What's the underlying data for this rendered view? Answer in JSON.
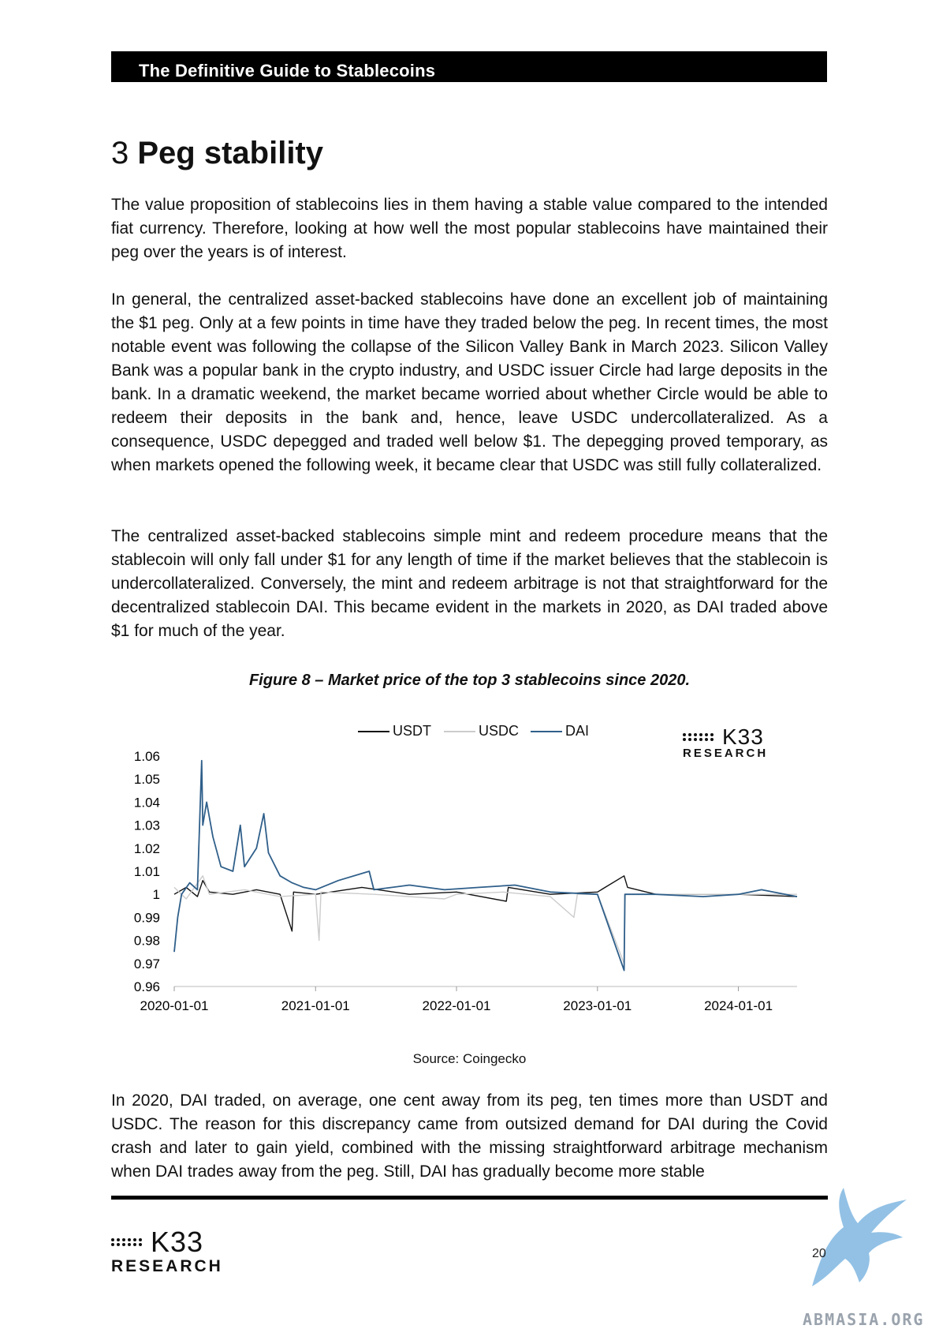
{
  "header": {
    "title": "The Definitive Guide to Stablecoins"
  },
  "section": {
    "number": "3",
    "title": "Peg stability"
  },
  "paragraphs": [
    "The value proposition of stablecoins lies in them having a stable value compared to the intended fiat currency. Therefore, looking at how well the most popular stablecoins have maintained their peg over the years is of interest.",
    "In general, the centralized asset-backed stablecoins have done an excellent job of maintaining the $1 peg. Only at a few points in time have they traded below the peg. In recent times, the most notable event was following the collapse of the Silicon Valley Bank in March 2023. Silicon Valley Bank was a popular bank in the crypto industry, and USDC issuer Circle had large deposits in the bank. In a dramatic weekend, the market became worried about whether Circle would be able to redeem their deposits in the bank and, hence, leave USDC undercollateralized. As a consequence, USDC depegged and traded well below $1. The depegging proved temporary, as when markets opened the following week, it became clear that USDC was still fully collateralized.",
    "The centralized asset-backed stablecoins simple mint and redeem procedure means that the stablecoin will only fall under $1 for any length of time if the market believes that the stablecoin is undercollateralized. Conversely, the mint and redeem arbitrage is not that straightforward for the decentralized stablecoin DAI.  This became evident in the markets in 2020, as DAI traded above $1 for much of the year.",
    "In 2020, DAI traded, on average, one cent away from its peg, ten times more than USDT and USDC. The reason for this discrepancy came from outsized demand for DAI during the Covid crash and later to gain yield, combined with the missing straightforward arbitrage mechanism when DAI trades away from the peg. Still, DAI has gradually become more stable"
  ],
  "figure": {
    "caption": "Figure 8 – Market price of the top 3 stablecoins since 2020.",
    "source": "Source: Coingecko",
    "logo_k33": "K33",
    "logo_research": "RESEARCH"
  },
  "chart_data": {
    "type": "line",
    "title": "",
    "xlabel": "",
    "ylabel": "",
    "x_ticks": [
      "2020-01-01",
      "2021-01-01",
      "2022-01-01",
      "2023-01-01",
      "2024-01-01"
    ],
    "y_ticks": [
      "1.06",
      "1.05",
      "1.04",
      "1.03",
      "1.02",
      "1.01",
      "1",
      "0.99",
      "0.98",
      "0.97",
      "0.96"
    ],
    "ylim": [
      0.96,
      1.06
    ],
    "xlim": [
      "2020-01-01",
      "2024-06-01"
    ],
    "legend_position": "top",
    "grid": false,
    "series": [
      {
        "name": "USDT",
        "color": "#111111",
        "points": [
          [
            "2020-01-01",
            1.0
          ],
          [
            "2020-02-01",
            1.003
          ],
          [
            "2020-03-01",
            0.999
          ],
          [
            "2020-03-15",
            1.006
          ],
          [
            "2020-04-01",
            1.001
          ],
          [
            "2020-06-01",
            1.0
          ],
          [
            "2020-08-01",
            1.002
          ],
          [
            "2020-10-01",
            1.0
          ],
          [
            "2020-11-01",
            0.984
          ],
          [
            "2020-11-05",
            1.001
          ],
          [
            "2021-01-01",
            1.0
          ],
          [
            "2021-05-01",
            1.003
          ],
          [
            "2021-09-01",
            1.0
          ],
          [
            "2022-01-01",
            1.001
          ],
          [
            "2022-05-10",
            0.997
          ],
          [
            "2022-05-15",
            1.003
          ],
          [
            "2022-09-01",
            1.0
          ],
          [
            "2023-01-01",
            1.001
          ],
          [
            "2023-03-11",
            1.008
          ],
          [
            "2023-03-20",
            1.003
          ],
          [
            "2023-06-01",
            1.0
          ],
          [
            "2023-10-01",
            1.0
          ],
          [
            "2024-01-01",
            1.0
          ],
          [
            "2024-06-01",
            0.999
          ]
        ]
      },
      {
        "name": "USDC",
        "color": "#cccccc",
        "points": [
          [
            "2020-01-01",
            1.003
          ],
          [
            "2020-02-01",
            0.998
          ],
          [
            "2020-03-15",
            1.008
          ],
          [
            "2020-04-01",
            1.0
          ],
          [
            "2020-07-01",
            1.002
          ],
          [
            "2020-10-01",
            0.999
          ],
          [
            "2021-01-01",
            1.0
          ],
          [
            "2021-01-10",
            0.98
          ],
          [
            "2021-01-15",
            1.001
          ],
          [
            "2021-06-01",
            1.0
          ],
          [
            "2021-12-01",
            0.998
          ],
          [
            "2022-01-01",
            1.0
          ],
          [
            "2022-05-01",
            1.001
          ],
          [
            "2022-09-01",
            0.999
          ],
          [
            "2022-11-01",
            0.99
          ],
          [
            "2022-11-10",
            1.0
          ],
          [
            "2023-01-01",
            1.0
          ],
          [
            "2023-03-11",
            0.97
          ],
          [
            "2023-03-14",
            1.0
          ],
          [
            "2023-08-01",
            1.0
          ],
          [
            "2024-01-01",
            1.0
          ],
          [
            "2024-06-01",
            1.0
          ]
        ]
      },
      {
        "name": "DAI",
        "color": "#2f5f8a",
        "points": [
          [
            "2020-01-01",
            0.975
          ],
          [
            "2020-01-10",
            0.99
          ],
          [
            "2020-01-20",
            1.0
          ],
          [
            "2020-02-10",
            1.005
          ],
          [
            "2020-03-01",
            1.002
          ],
          [
            "2020-03-12",
            1.058
          ],
          [
            "2020-03-15",
            1.03
          ],
          [
            "2020-03-25",
            1.04
          ],
          [
            "2020-04-10",
            1.025
          ],
          [
            "2020-05-01",
            1.012
          ],
          [
            "2020-06-01",
            1.01
          ],
          [
            "2020-06-20",
            1.03
          ],
          [
            "2020-07-01",
            1.012
          ],
          [
            "2020-08-01",
            1.02
          ],
          [
            "2020-08-20",
            1.035
          ],
          [
            "2020-09-01",
            1.018
          ],
          [
            "2020-10-01",
            1.008
          ],
          [
            "2020-11-01",
            1.005
          ],
          [
            "2020-12-01",
            1.003
          ],
          [
            "2021-01-01",
            1.002
          ],
          [
            "2021-03-01",
            1.006
          ],
          [
            "2021-05-20",
            1.01
          ],
          [
            "2021-06-01",
            1.002
          ],
          [
            "2021-09-01",
            1.004
          ],
          [
            "2021-12-01",
            1.002
          ],
          [
            "2022-03-01",
            1.003
          ],
          [
            "2022-06-01",
            1.004
          ],
          [
            "2022-09-01",
            1.001
          ],
          [
            "2023-01-01",
            1.0
          ],
          [
            "2023-03-11",
            0.967
          ],
          [
            "2023-03-13",
            1.0
          ],
          [
            "2023-06-01",
            1.0
          ],
          [
            "2023-10-01",
            0.999
          ],
          [
            "2024-01-01",
            1.0
          ],
          [
            "2024-03-01",
            1.002
          ],
          [
            "2024-06-01",
            0.999
          ]
        ]
      }
    ]
  },
  "footer": {
    "logo_k33": "K33",
    "logo_research": "RESEARCH",
    "page_number": "20",
    "watermark": "ABMASIA.ORG"
  }
}
